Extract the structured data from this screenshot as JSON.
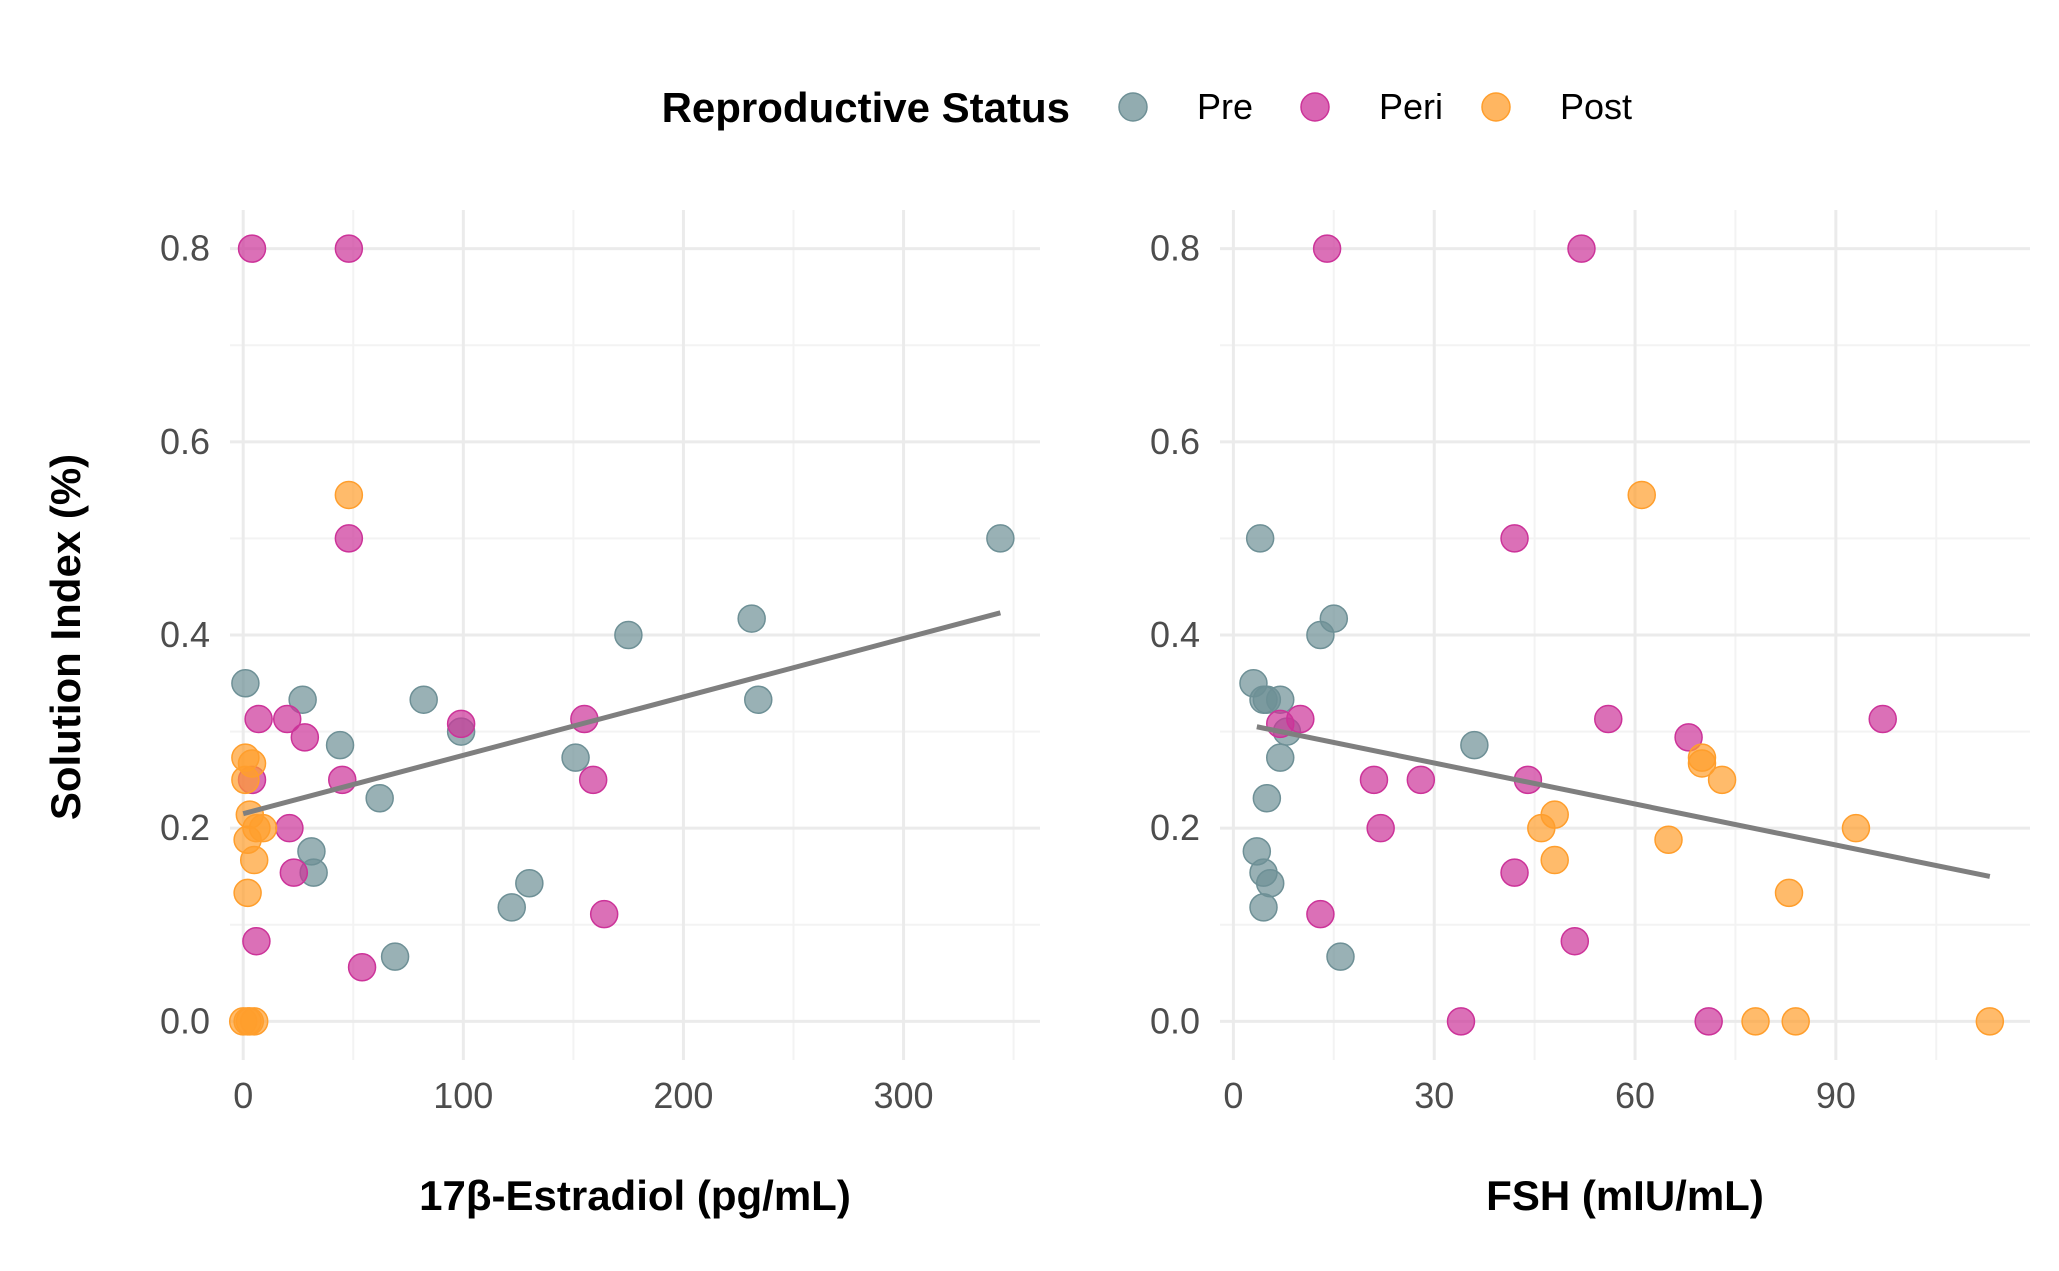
{
  "legend": {
    "title": "Reproductive Status",
    "items": [
      {
        "key": "Pre",
        "label": "Pre",
        "color": "#6e9096"
      },
      {
        "key": "Peri",
        "label": "Peri",
        "color": "#cc3399"
      },
      {
        "key": "Post",
        "label": "Post",
        "color": "#ff9e2c"
      }
    ]
  },
  "y_axis_title": "Solution Index (%)",
  "chart_data": [
    {
      "type": "scatter",
      "id": "estradiol",
      "title": "",
      "xlabel": "17β-Estradiol (pg/mL)",
      "ylabel": "Solution Index (%)",
      "xlim": [
        -6,
        362
      ],
      "ylim": [
        -0.04,
        0.84
      ],
      "x_ticks": [
        0,
        100,
        200,
        300
      ],
      "x_tick_labels": [
        "0",
        "100",
        "200",
        "300"
      ],
      "y_ticks": [
        0.0,
        0.2,
        0.4,
        0.6,
        0.8
      ],
      "y_tick_labels": [
        "0.0",
        "0.2",
        "0.4",
        "0.6",
        "0.8"
      ],
      "fit_line": {
        "x": [
          0,
          344
        ],
        "y": [
          0.215,
          0.423
        ]
      },
      "series": [
        {
          "name": "Pre",
          "points": [
            [
              1,
              0.35
            ],
            [
              27,
              0.333
            ],
            [
              44,
              0.286
            ],
            [
              31,
              0.176
            ],
            [
              32,
              0.154
            ],
            [
              62,
              0.231
            ],
            [
              69,
              0.067
            ],
            [
              82,
              0.333
            ],
            [
              99,
              0.3
            ],
            [
              122,
              0.118
            ],
            [
              130,
              0.143
            ],
            [
              151,
              0.273
            ],
            [
              175,
              0.4
            ],
            [
              231,
              0.417
            ],
            [
              234,
              0.333
            ],
            [
              344,
              0.5
            ]
          ]
        },
        {
          "name": "Peri",
          "points": [
            [
              4,
              0.8
            ],
            [
              48,
              0.8
            ],
            [
              48,
              0.5
            ],
            [
              7,
              0.313
            ],
            [
              20,
              0.313
            ],
            [
              28,
              0.294
            ],
            [
              4,
              0.25
            ],
            [
              45,
              0.25
            ],
            [
              21,
              0.2
            ],
            [
              23,
              0.154
            ],
            [
              6,
              0.083
            ],
            [
              54,
              0.056
            ],
            [
              99,
              0.308
            ],
            [
              155,
              0.313
            ],
            [
              159,
              0.25
            ],
            [
              164,
              0.111
            ]
          ]
        },
        {
          "name": "Post",
          "points": [
            [
              48,
              0.545
            ],
            [
              1,
              0.273
            ],
            [
              4,
              0.267
            ],
            [
              1,
              0.25
            ],
            [
              3,
              0.214
            ],
            [
              6,
              0.2
            ],
            [
              9,
              0.2
            ],
            [
              2,
              0.188
            ],
            [
              5,
              0.167
            ],
            [
              2,
              0.133
            ],
            [
              0,
              0
            ],
            [
              2,
              0
            ],
            [
              3,
              0
            ],
            [
              5,
              0
            ]
          ]
        }
      ]
    },
    {
      "type": "scatter",
      "id": "fsh",
      "title": "",
      "xlabel": "FSH (mIU/mL)",
      "ylabel": "Solution Index (%)",
      "xlim": [
        -2,
        119
      ],
      "ylim": [
        -0.04,
        0.84
      ],
      "x_ticks": [
        0,
        30,
        60,
        90
      ],
      "x_tick_labels": [
        "0",
        "30",
        "60",
        "90"
      ],
      "y_ticks": [
        0.0,
        0.2,
        0.4,
        0.6,
        0.8
      ],
      "y_tick_labels": [
        "0.0",
        "0.2",
        "0.4",
        "0.6",
        "0.8"
      ],
      "fit_line": {
        "x": [
          3.5,
          113
        ],
        "y": [
          0.305,
          0.15
        ]
      },
      "series": [
        {
          "name": "Pre",
          "points": [
            [
              4,
              0.5
            ],
            [
              3,
              0.35
            ],
            [
              4.5,
              0.333
            ],
            [
              5,
              0.333
            ],
            [
              7,
              0.333
            ],
            [
              8,
              0.3
            ],
            [
              13,
              0.4
            ],
            [
              15,
              0.417
            ],
            [
              7,
              0.273
            ],
            [
              5,
              0.231
            ],
            [
              3.5,
              0.176
            ],
            [
              4.5,
              0.154
            ],
            [
              5.5,
              0.143
            ],
            [
              4.5,
              0.118
            ],
            [
              16,
              0.067
            ],
            [
              36,
              0.286
            ]
          ]
        },
        {
          "name": "Peri",
          "points": [
            [
              14,
              0.8
            ],
            [
              52,
              0.8
            ],
            [
              42,
              0.5
            ],
            [
              7,
              0.308
            ],
            [
              10,
              0.313
            ],
            [
              21,
              0.25
            ],
            [
              28,
              0.25
            ],
            [
              22,
              0.2
            ],
            [
              13,
              0.111
            ],
            [
              34,
              0
            ],
            [
              44,
              0.25
            ],
            [
              42,
              0.154
            ],
            [
              51,
              0.083
            ],
            [
              56,
              0.313
            ],
            [
              68,
              0.294
            ],
            [
              71,
              0
            ],
            [
              97,
              0.313
            ]
          ]
        },
        {
          "name": "Post",
          "points": [
            [
              61,
              0.545
            ],
            [
              46,
              0.2
            ],
            [
              48,
              0.214
            ],
            [
              48,
              0.167
            ],
            [
              65,
              0.188
            ],
            [
              70,
              0.273
            ],
            [
              70,
              0.267
            ],
            [
              73,
              0.25
            ],
            [
              93,
              0.2
            ],
            [
              83,
              0.133
            ],
            [
              78,
              0
            ],
            [
              84,
              0
            ],
            [
              113,
              0
            ]
          ]
        }
      ]
    }
  ]
}
